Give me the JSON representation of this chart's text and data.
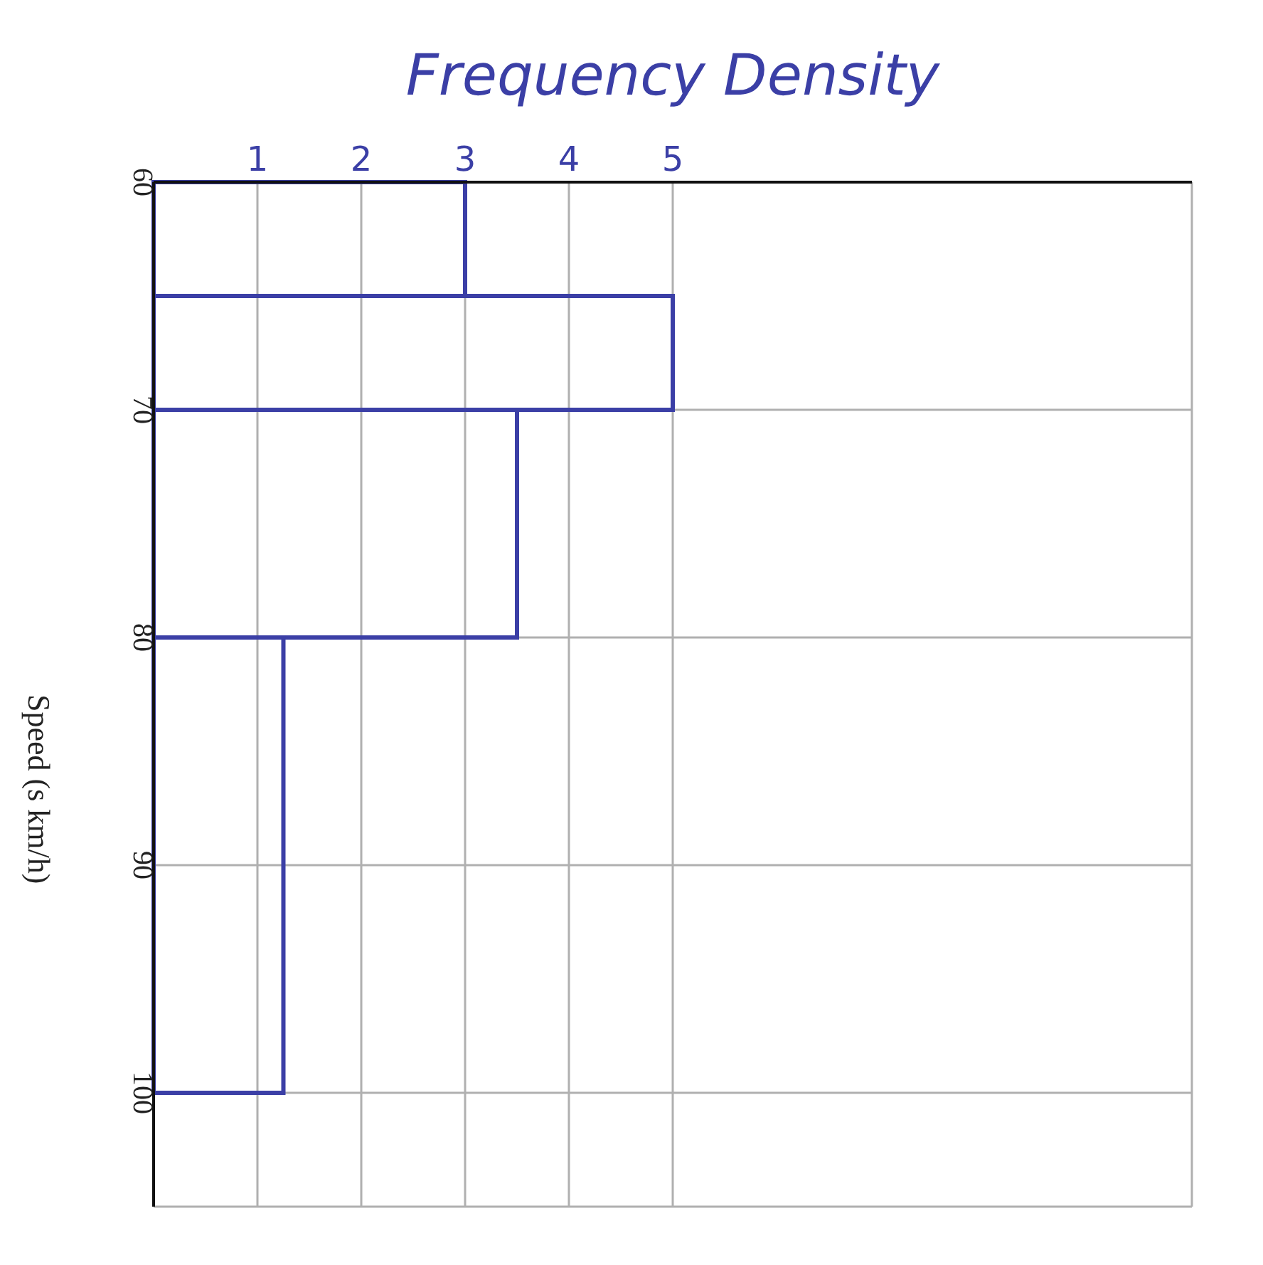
{
  "chart_data": {
    "type": "histogram",
    "orientation": "horizontal",
    "xlabel": "Frequency Density",
    "ylabel": "Speed (s km/h)",
    "bins": [
      60,
      65,
      70,
      80,
      100
    ],
    "values": [
      3,
      5,
      3.5,
      1.25
    ],
    "color": "#3b3fa6",
    "xlim": [
      0,
      10
    ],
    "xticks": [
      1,
      2,
      3,
      4,
      5
    ],
    "ylim": [
      105,
      60
    ],
    "yticks": [
      60,
      70,
      80,
      90,
      100
    ],
    "grid": true
  }
}
